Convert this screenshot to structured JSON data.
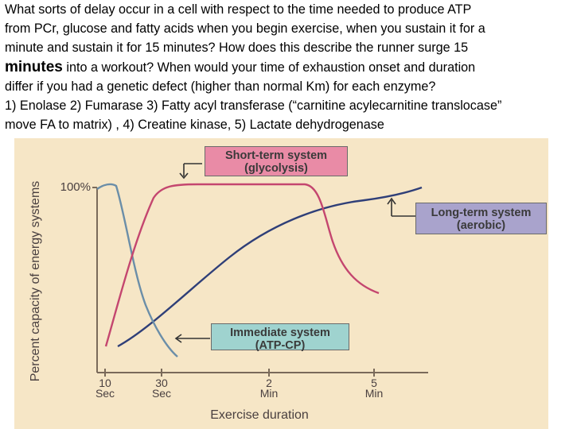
{
  "question": {
    "line1": "What sorts of delay occur in a cell with respect to the time needed to produce ATP",
    "line2": "from PCr, glucose and fatty acids when you begin exercise, when you sustain it for a",
    "line3": "minute and sustain it for 15 minutes?  How does this describe the runner surge 15",
    "line4_big": "minutes",
    "line4_rest": " into a workout?   When would your time of exhaustion onset and duration",
    "line5": "differ if you had a genetic defect (higher than normal Km) for each enzyme?",
    "line6": "1) Enolase 2) Fumarase 3) Fatty acyl transferase (“carnitine acylecarnitine translocase”",
    "line7": "move FA to matrix) , 4) Creatine kinase, 5) Lactate dehydrogenase"
  },
  "figure": {
    "y_axis_label": "Percent capacity of energy systems",
    "y_tick": "100%",
    "x_axis_label": "Exercise duration",
    "x_ticks": [
      {
        "value": "10",
        "unit": "Sec"
      },
      {
        "value": "30",
        "unit": "Sec"
      },
      {
        "value": "2",
        "unit": "Min"
      },
      {
        "value": "5",
        "unit": "Min"
      }
    ],
    "boxes": {
      "short_term": {
        "line1": "Short-term system",
        "line2": "(glycolysis)",
        "color": "#e98ba6"
      },
      "long_term": {
        "line1": "Long-term system",
        "line2": "(aerobic)",
        "color": "#a9a3cc"
      },
      "immediate": {
        "line1": "Immediate system",
        "line2": "(ATP-CP)",
        "color": "#9fd3cf"
      }
    },
    "curve_colors": {
      "atp_cp": "#6b8ea8",
      "glycolysis": "#c4466f",
      "aerobic": "#2f3f78"
    }
  }
}
